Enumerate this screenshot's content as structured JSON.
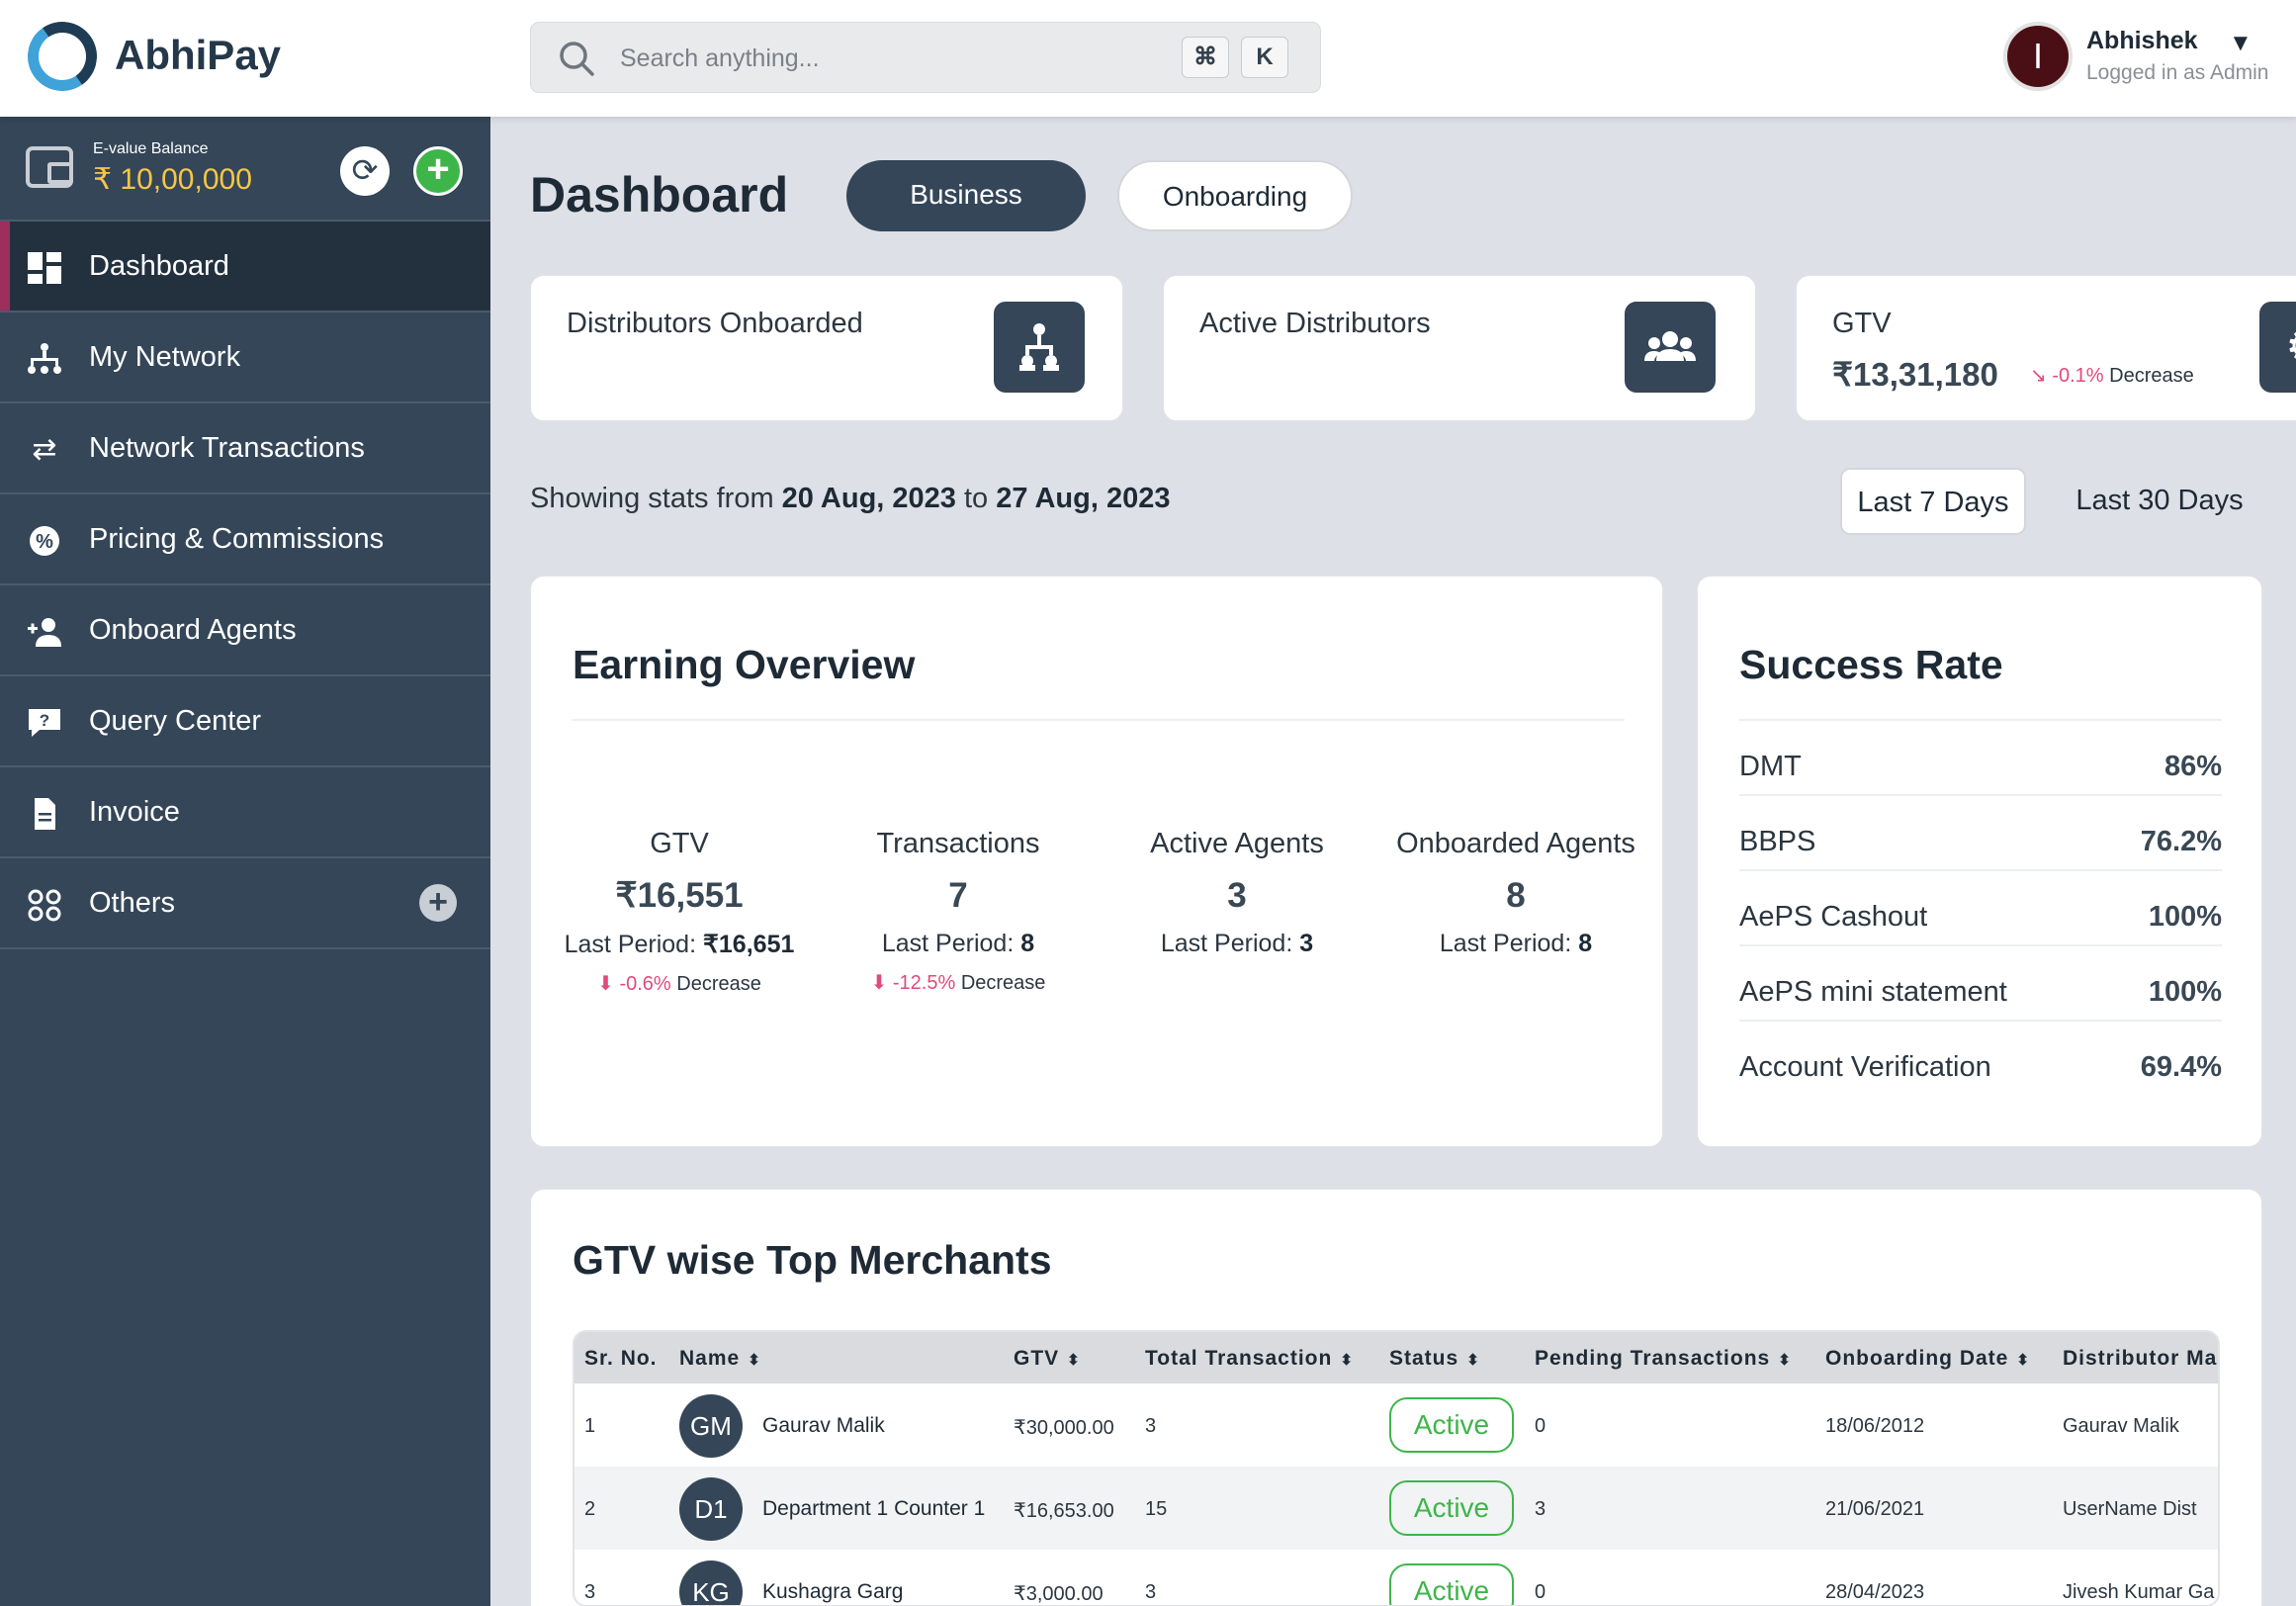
{
  "app": {
    "brand": "AbhiPay"
  },
  "search": {
    "placeholder": "Search anything...",
    "key1": "⌘",
    "key2": "K"
  },
  "user": {
    "initial": "I",
    "name": "Abhishek",
    "role": "Logged in as Admin"
  },
  "wallet": {
    "label": "E-value Balance",
    "balance": "₹ 10,00,000"
  },
  "sidebar": {
    "items": [
      {
        "label": "Dashboard",
        "icon": "dashboard-icon"
      },
      {
        "label": "My Network",
        "icon": "network-icon"
      },
      {
        "label": "Network Transactions",
        "icon": "transfer-icon"
      },
      {
        "label": "Pricing & Commissions",
        "icon": "discount-badge-icon"
      },
      {
        "label": "Onboard Agents",
        "icon": "add-user-icon"
      },
      {
        "label": "Query Center",
        "icon": "question-chat-icon"
      },
      {
        "label": "Invoice",
        "icon": "document-icon"
      },
      {
        "label": "Others",
        "icon": "grid-circles-icon"
      }
    ]
  },
  "header": {
    "title": "Dashboard",
    "tabs": [
      "Business",
      "Onboarding"
    ]
  },
  "kpis": [
    {
      "label": "Distributors Onboarded",
      "icon": "hierarchy-icon"
    },
    {
      "label": "Active Distributors",
      "icon": "users-group-icon"
    },
    {
      "label": "GTV",
      "value": "₹13,31,180",
      "change": "-0.1%",
      "direction": "Decrease"
    }
  ],
  "range": {
    "prefix": "Showing stats from",
    "from": "20 Aug, 2023",
    "sep": "to",
    "to": "27 Aug, 2023",
    "options": [
      "Last 7 Days",
      "Last 30 Days"
    ]
  },
  "earning": {
    "title": "Earning Overview",
    "metrics": [
      {
        "label": "GTV",
        "value": "₹16,551",
        "last_label": "Last Period:",
        "last": "₹16,651",
        "change": "-0.6%",
        "direction": "Decrease"
      },
      {
        "label": "Transactions",
        "value": "7",
        "last_label": "Last Period:",
        "last": "8",
        "change": "-12.5%",
        "direction": "Decrease"
      },
      {
        "label": "Active Agents",
        "value": "3",
        "last_label": "Last Period:",
        "last": "3"
      },
      {
        "label": "Onboarded Agents",
        "value": "8",
        "last_label": "Last Period:",
        "last": "8"
      }
    ]
  },
  "success": {
    "title": "Success Rate",
    "rows": [
      {
        "label": "DMT",
        "value": "86%"
      },
      {
        "label": "BBPS",
        "value": "76.2%"
      },
      {
        "label": "AePS Cashout",
        "value": "100%"
      },
      {
        "label": "AePS mini statement",
        "value": "100%"
      },
      {
        "label": "Account Verification",
        "value": "69.4%"
      }
    ]
  },
  "merchants": {
    "title": "GTV wise Top Merchants",
    "columns": [
      "Sr. No.",
      "Name",
      "GTV",
      "Total Transaction",
      "Status",
      "Pending Transactions",
      "Onboarding Date",
      "Distributor Ma"
    ],
    "rows": [
      {
        "sr": "1",
        "initials": "GM",
        "name": "Gaurav Malik",
        "gtv": "₹30,000.00",
        "total": "3",
        "status": "Active",
        "pending": "0",
        "date": "18/06/2012",
        "distributor": "Gaurav Malik"
      },
      {
        "sr": "2",
        "initials": "D1",
        "name": "Department 1 Counter 1",
        "gtv": "₹16,653.00",
        "total": "15",
        "status": "Active",
        "pending": "3",
        "date": "21/06/2021",
        "distributor": "UserName Dist"
      },
      {
        "sr": "3",
        "initials": "KG",
        "name": "Kushagra Garg",
        "gtv": "₹3,000.00",
        "total": "3",
        "status": "Active",
        "pending": "0",
        "date": "28/04/2023",
        "distributor": "Jivesh Kumar Ga"
      }
    ]
  },
  "colors": {
    "sidebar": "#344658",
    "accent_active": "#9c2f5c",
    "success": "#3eb549",
    "negative": "#e04a7a",
    "balance": "#f6c744"
  }
}
